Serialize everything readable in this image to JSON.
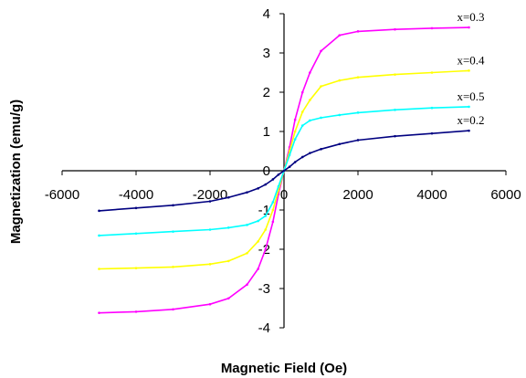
{
  "chart_data": {
    "type": "line",
    "title": "",
    "xlabel": "Magnetic Field (Oe)",
    "ylabel": "Magnetization (emu/g)",
    "xlim": [
      -6000,
      6000
    ],
    "ylim": [
      -4,
      4
    ],
    "x_ticks": [
      -6000,
      -4000,
      -2000,
      0,
      2000,
      4000,
      6000
    ],
    "y_ticks": [
      -4,
      -3,
      -2,
      -1,
      0,
      1,
      2,
      3,
      4
    ],
    "x_tick_labels": [
      "-6000",
      "-4000",
      "-2000",
      "0",
      "2000",
      "4000",
      "6000"
    ],
    "y_tick_labels": [
      "-4",
      "-3",
      "-2",
      "-1",
      "0",
      "1",
      "2",
      "3",
      "4"
    ],
    "grid": false,
    "legend": "labels at line ends",
    "series": [
      {
        "name": "x=0.3",
        "color": "#ff00ff",
        "x": [
          -5000,
          -4000,
          -3000,
          -2000,
          -1500,
          -1000,
          -700,
          -500,
          -300,
          -150,
          0,
          150,
          300,
          500,
          700,
          1000,
          1500,
          2000,
          3000,
          4000,
          5000
        ],
        "y": [
          -3.62,
          -3.59,
          -3.53,
          -3.4,
          -3.25,
          -2.9,
          -2.5,
          -2.0,
          -1.3,
          -0.6,
          0.0,
          0.6,
          1.3,
          2.0,
          2.5,
          3.05,
          3.45,
          3.55,
          3.6,
          3.63,
          3.65
        ]
      },
      {
        "name": "x=0.4",
        "color": "#ffff00",
        "x": [
          -5000,
          -4000,
          -3000,
          -2000,
          -1500,
          -1000,
          -700,
          -500,
          -300,
          -150,
          0,
          150,
          300,
          500,
          700,
          1000,
          1500,
          2000,
          3000,
          4000,
          5000
        ],
        "y": [
          -2.5,
          -2.48,
          -2.45,
          -2.38,
          -2.3,
          -2.1,
          -1.8,
          -1.5,
          -1.0,
          -0.5,
          0.0,
          0.5,
          1.0,
          1.5,
          1.8,
          2.15,
          2.3,
          2.38,
          2.45,
          2.5,
          2.55
        ]
      },
      {
        "name": "x=0.5",
        "color": "#00ffff",
        "x": [
          -5000,
          -4000,
          -3000,
          -2000,
          -1500,
          -1000,
          -700,
          -500,
          -300,
          -150,
          0,
          150,
          300,
          500,
          700,
          1000,
          1500,
          2000,
          3000,
          4000,
          5000
        ],
        "y": [
          -1.65,
          -1.6,
          -1.55,
          -1.5,
          -1.45,
          -1.38,
          -1.28,
          -1.15,
          -0.8,
          -0.4,
          0.0,
          0.4,
          0.8,
          1.15,
          1.28,
          1.35,
          1.42,
          1.48,
          1.55,
          1.6,
          1.63
        ]
      },
      {
        "name": "x=0.2",
        "color": "#000080",
        "x": [
          -5000,
          -4000,
          -3000,
          -2000,
          -1500,
          -1000,
          -700,
          -500,
          -300,
          -150,
          0,
          150,
          300,
          500,
          700,
          1000,
          1500,
          2000,
          3000,
          4000,
          5000
        ],
        "y": [
          -1.02,
          -0.95,
          -0.88,
          -0.78,
          -0.68,
          -0.55,
          -0.45,
          -0.35,
          -0.22,
          -0.1,
          0.0,
          0.1,
          0.22,
          0.35,
          0.45,
          0.55,
          0.68,
          0.78,
          0.88,
          0.95,
          1.02
        ]
      }
    ]
  }
}
